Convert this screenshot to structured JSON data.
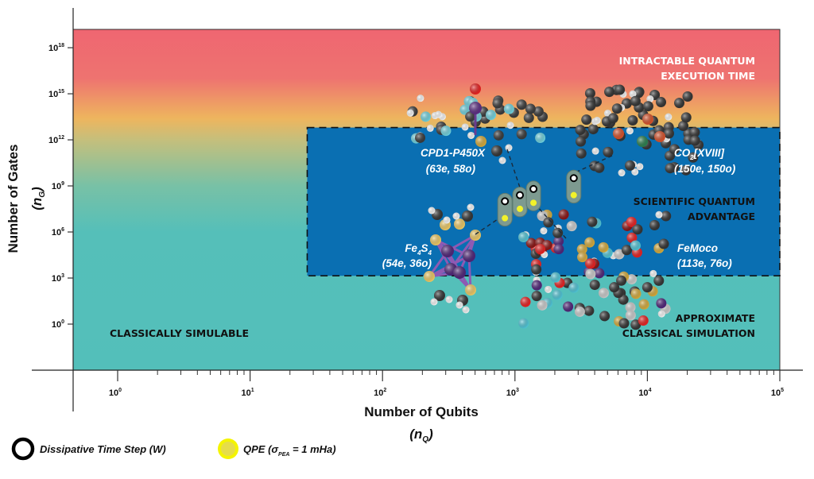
{
  "chart_data": {
    "type": "scatter",
    "title": "",
    "xlabel": "Number of Qubits",
    "xlabel_sub": "(n_Q)",
    "ylabel": "Number of Gates",
    "ylabel_sub": "(n_G)",
    "xscale": "log",
    "yscale": "log",
    "xlim": [
      0.46,
      100000
    ],
    "ylim": [
      0.001,
      1.6e+19
    ],
    "grid": false,
    "x_ticks": [
      {
        "exp": 0,
        "base": "10",
        "sup": "0"
      },
      {
        "exp": 1,
        "base": "10",
        "sup": "1"
      },
      {
        "exp": 2,
        "base": "10",
        "sup": "2"
      },
      {
        "exp": 3,
        "base": "10",
        "sup": "3"
      },
      {
        "exp": 4,
        "base": "10",
        "sup": "4"
      },
      {
        "exp": 5,
        "base": "10",
        "sup": "5"
      }
    ],
    "y_ticks": [
      {
        "exp": 0,
        "base": "10",
        "sup": "0"
      },
      {
        "exp": 3,
        "base": "10",
        "sup": "3"
      },
      {
        "exp": 6,
        "base": "10",
        "sup": "6"
      },
      {
        "exp": 9,
        "base": "10",
        "sup": "9"
      },
      {
        "exp": 12,
        "base": "10",
        "sup": "12"
      },
      {
        "exp": 15,
        "base": "10",
        "sup": "15"
      },
      {
        "exp": 18,
        "base": "10",
        "sup": "18"
      }
    ],
    "regions": [
      {
        "name": "intractable",
        "lines": [
          "INTRACTABLE QUANTUM",
          "EXECUTION TIME"
        ],
        "color": "#ffffff"
      },
      {
        "name": "scientific-advantage",
        "lines": [
          "SCIENTIFIC QUANTUM",
          "ADVANTAGE"
        ],
        "color": "#111111",
        "box": {
          "x": [
            27,
            100000
          ],
          "y": [
            1400,
            6300000000000.0
          ]
        },
        "fill": "#0a6fb2"
      },
      {
        "name": "approximate-classical",
        "lines": [
          "APPROXIMATE",
          "CLASSICAL SIMULATION"
        ],
        "color": "#111111"
      },
      {
        "name": "classically-simulable",
        "lines": [
          "CLASSICALLY SIMULABLE"
        ],
        "color": "#111111"
      }
    ],
    "background_gradient": [
      {
        "log_y": 19.2,
        "color": "#ef6671"
      },
      {
        "log_y": 16.0,
        "color": "#ee7370"
      },
      {
        "log_y": 13.4,
        "color": "#eeb55e"
      },
      {
        "log_y": 12.0,
        "color": "#c5bf7c"
      },
      {
        "log_y": 9.0,
        "color": "#78c1a6"
      },
      {
        "log_y": 6.0,
        "color": "#55bfb9"
      },
      {
        "log_y": -3.0,
        "color": "#53bfba"
      }
    ],
    "series": [
      {
        "name": "Dissipative Time Step (W)",
        "marker": "ring",
        "color": "#000000",
        "points": [
          {
            "x": 840,
            "y": 100000000.0
          },
          {
            "x": 1090,
            "y": 250000000.0
          },
          {
            "x": 1380,
            "y": 630000000.0
          },
          {
            "x": 2780,
            "y": 3200000000.0
          }
        ]
      },
      {
        "name": "QPE (σ_PEA = 1 mHa)",
        "marker": "filled",
        "color": "#f2f22a",
        "points": [
          {
            "x": 840,
            "y": 7900000.0
          },
          {
            "x": 1090,
            "y": 32000000.0
          },
          {
            "x": 1380,
            "y": 79000000.0
          },
          {
            "x": 2780,
            "y": 250000000.0
          }
        ]
      }
    ],
    "molecules": [
      {
        "name": "CPD1-P450X",
        "size": "(63e, 58o)",
        "subscript": null,
        "links_to_point": 1
      },
      {
        "name": "CO",
        "name_sub": "2",
        "name_rest": "[XVIII]",
        "size": "(150e, 150o)",
        "links_to_point": 3
      },
      {
        "name": "Fe",
        "name_sub": "4",
        "name_mid": "S",
        "name_sub2": "4",
        "size": "(54e, 36o)",
        "links_to_point": 0
      },
      {
        "name": "FeMoco",
        "size": "(113e, 76o)",
        "links_to_point": 2
      }
    ],
    "legend": {
      "placement": "bottom-left",
      "items": [
        {
          "label": "Dissipative Time Step (W)",
          "marker": "ring"
        },
        {
          "label_prefix": "QPE (σ",
          "label_sub": "PEA",
          "label_suffix": " = 1 mHa)",
          "marker": "filled"
        }
      ]
    }
  },
  "colors": {
    "scientific_box": "#0a6fb2",
    "pill": "#7d9a90",
    "qpe_marker": "#f2f22a",
    "ring_marker": "#000000",
    "axis": "#222222"
  }
}
